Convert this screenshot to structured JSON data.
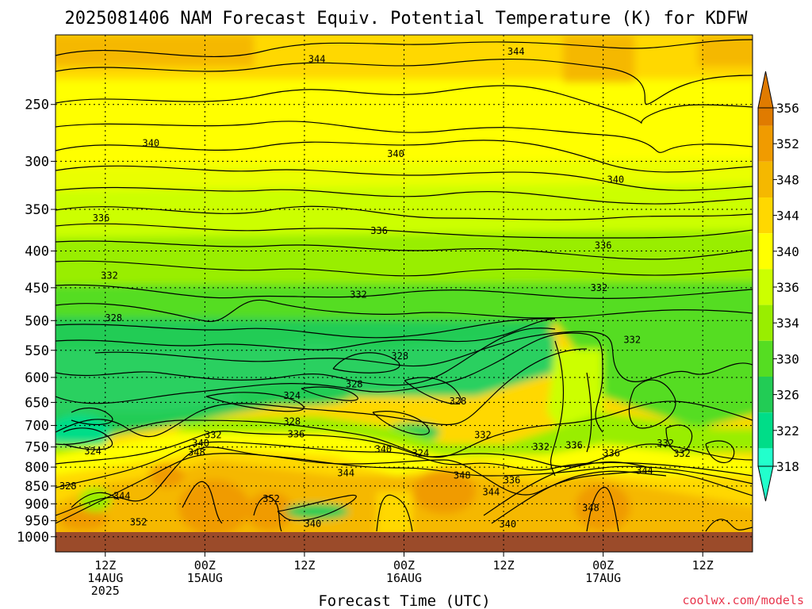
{
  "title": "2025081406 NAM Forecast Equiv. Potential Temperature (K) for KDFW",
  "credit": "coolwx.com/models",
  "chart_data": {
    "type": "heatmap",
    "title": "2025081406 NAM Forecast Equiv. Potential Temperature (K) for KDFW",
    "xlabel": "Forecast Time (UTC)",
    "ylabel": "",
    "x_forecast_hours": [
      0,
      84
    ],
    "x_ticks": [
      {
        "hour": 6,
        "lines": [
          "12Z",
          "14AUG",
          "2025"
        ]
      },
      {
        "hour": 18,
        "lines": [
          "00Z",
          "15AUG"
        ]
      },
      {
        "hour": 30,
        "lines": [
          "12Z"
        ]
      },
      {
        "hour": 42,
        "lines": [
          "00Z",
          "16AUG"
        ]
      },
      {
        "hour": 54,
        "lines": [
          "12Z"
        ]
      },
      {
        "hour": 66,
        "lines": [
          "00Z",
          "17AUG"
        ]
      },
      {
        "hour": 78,
        "lines": [
          "12Z"
        ]
      }
    ],
    "y_scale": "log_pressure",
    "y_range_hPa": [
      1050,
      200
    ],
    "y_ticks": [
      250,
      300,
      350,
      400,
      450,
      500,
      550,
      600,
      650,
      700,
      750,
      800,
      850,
      900,
      950,
      1000
    ],
    "colorbar": {
      "labels": [
        356,
        352,
        348,
        344,
        340,
        336,
        334,
        330,
        326,
        322,
        318
      ],
      "colors": [
        "#e07b00",
        "#f09b00",
        "#f5b800",
        "#ffd800",
        "#ffff00",
        "#ccff00",
        "#99ee00",
        "#55dd22",
        "#22cc55",
        "#00dd88",
        "#22ffcc"
      ],
      "extends": "both"
    },
    "contour_labels": [
      {
        "t": 31.5,
        "p": 216,
        "v": "344"
      },
      {
        "t": 55.5,
        "p": 211,
        "v": "344"
      },
      {
        "t": 11.5,
        "p": 283,
        "v": "340"
      },
      {
        "t": 41.0,
        "p": 293,
        "v": "340"
      },
      {
        "t": 67.5,
        "p": 318,
        "v": "340"
      },
      {
        "t": 5.5,
        "p": 360,
        "v": "336"
      },
      {
        "t": 39.0,
        "p": 375,
        "v": "336"
      },
      {
        "t": 66.0,
        "p": 393,
        "v": "336"
      },
      {
        "t": 6.5,
        "p": 433,
        "v": "332"
      },
      {
        "t": 36.5,
        "p": 460,
        "v": "332"
      },
      {
        "t": 65.5,
        "p": 450,
        "v": "332"
      },
      {
        "t": 69.5,
        "p": 532,
        "v": "332"
      },
      {
        "t": 7.0,
        "p": 496,
        "v": "328"
      },
      {
        "t": 41.5,
        "p": 560,
        "v": "328"
      },
      {
        "t": 36.0,
        "p": 613,
        "v": "328"
      },
      {
        "t": 48.5,
        "p": 648,
        "v": "328"
      },
      {
        "t": 28.5,
        "p": 691,
        "v": "328"
      },
      {
        "t": 28.5,
        "p": 636,
        "v": "324"
      },
      {
        "t": 4.5,
        "p": 760,
        "v": "324"
      },
      {
        "t": 44.0,
        "p": 765,
        "v": "324"
      },
      {
        "t": 19.0,
        "p": 722,
        "v": "332"
      },
      {
        "t": 29.0,
        "p": 720,
        "v": "336"
      },
      {
        "t": 51.5,
        "p": 722,
        "v": "332"
      },
      {
        "t": 58.5,
        "p": 750,
        "v": "332"
      },
      {
        "t": 62.5,
        "p": 746,
        "v": "336"
      },
      {
        "t": 73.5,
        "p": 741,
        "v": "332"
      },
      {
        "t": 75.5,
        "p": 766,
        "v": "332"
      },
      {
        "t": 67.0,
        "p": 765,
        "v": "336"
      },
      {
        "t": 17.5,
        "p": 741,
        "v": "340"
      },
      {
        "t": 39.5,
        "p": 755,
        "v": "340"
      },
      {
        "t": 17.0,
        "p": 763,
        "v": "348"
      },
      {
        "t": 35.0,
        "p": 815,
        "v": "344"
      },
      {
        "t": 49.0,
        "p": 822,
        "v": "348"
      },
      {
        "t": 52.5,
        "p": 867,
        "v": "344"
      },
      {
        "t": 55.0,
        "p": 834,
        "v": "336"
      },
      {
        "t": 71.0,
        "p": 809,
        "v": "344"
      },
      {
        "t": 1.5,
        "p": 850,
        "v": "328"
      },
      {
        "t": 8.0,
        "p": 878,
        "v": "344"
      },
      {
        "t": 26.0,
        "p": 886,
        "v": "352"
      },
      {
        "t": 10.0,
        "p": 955,
        "v": "352"
      },
      {
        "t": 64.5,
        "p": 912,
        "v": "348"
      },
      {
        "t": 31.0,
        "p": 959,
        "v": "340"
      },
      {
        "t": 54.5,
        "p": 961,
        "v": "340"
      }
    ]
  }
}
